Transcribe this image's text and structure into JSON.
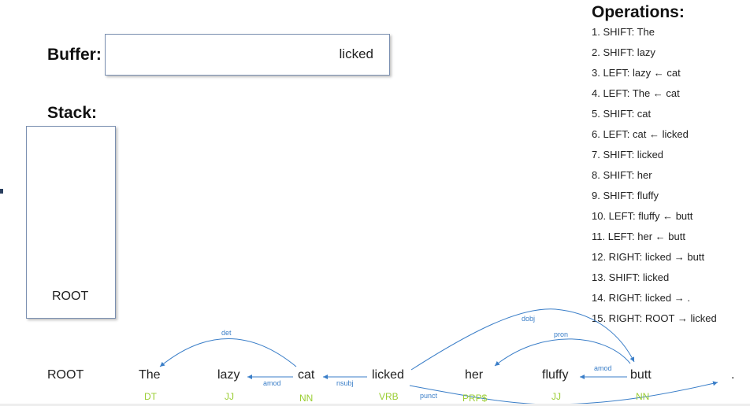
{
  "buffer": {
    "label": "Buffer:",
    "content": "licked"
  },
  "stack": {
    "label": "Stack:",
    "items": [
      "ROOT"
    ]
  },
  "operations": {
    "title": "Operations:",
    "items": [
      "1. SHIFT: The",
      "2. SHIFT: lazy",
      "3. LEFT: lazy ← cat",
      "4. LEFT: The ← cat",
      "5. SHIFT: cat",
      "6. LEFT: cat ← licked",
      "7. SHIFT: licked",
      "8. SHIFT: her",
      "9. SHIFT: fluffy",
      "10. LEFT: fluffy ← butt",
      "11. LEFT: her ← butt",
      "12. RIGHT: licked → butt",
      "13. SHIFT: licked",
      "14. RIGHT: licked → .",
      "15. RIGHT: ROOT → licked"
    ]
  },
  "sentence": {
    "words": [
      {
        "text": "ROOT",
        "tag": ""
      },
      {
        "text": "The",
        "tag": "DT"
      },
      {
        "text": "lazy",
        "tag": "JJ"
      },
      {
        "text": "cat",
        "tag": "NN"
      },
      {
        "text": "licked",
        "tag": "VRB"
      },
      {
        "text": "her",
        "tag": "PRP$"
      },
      {
        "text": "fluffy",
        "tag": "JJ"
      },
      {
        "text": "butt",
        "tag": "NN"
      },
      {
        "text": ".",
        "tag": ""
      }
    ]
  },
  "arcs": [
    {
      "label": "det"
    },
    {
      "label": "amod"
    },
    {
      "label": "nsubj"
    },
    {
      "label": "dobj"
    },
    {
      "label": "pron"
    },
    {
      "label": "amod"
    },
    {
      "label": "punct"
    }
  ],
  "colors": {
    "arc": "#3a7ec8",
    "tag": "#9acd32",
    "box_border": "#7a8fb0"
  }
}
